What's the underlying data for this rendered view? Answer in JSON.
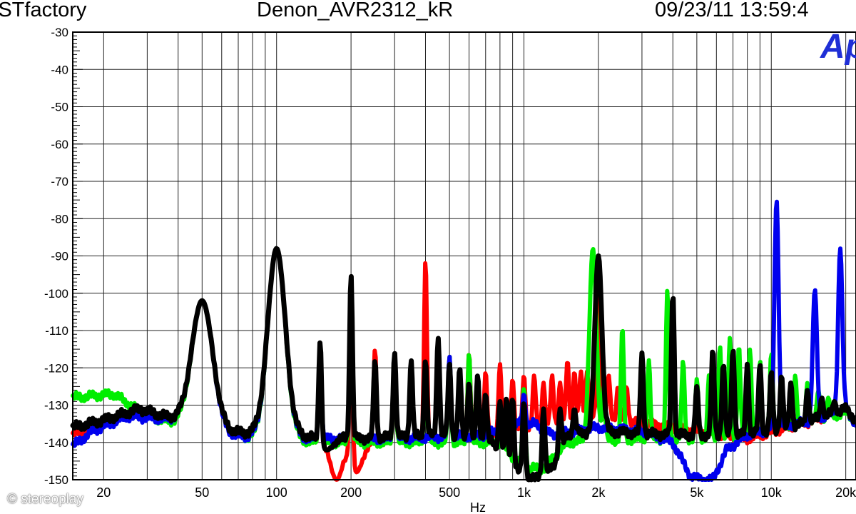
{
  "header": {
    "left": "ESTfactory",
    "title": "Denon_AVR2312_kR",
    "timestamp": "09/23/11 13:59:4"
  },
  "logo_text": "Ap",
  "watermark": "© stereoplay",
  "chart_data": {
    "type": "line",
    "title": "Denon_AVR2312_kR",
    "xlabel": "Hz",
    "ylabel": "",
    "xscale": "log",
    "xlim": [
      15,
      22000
    ],
    "ylim": [
      -150,
      -30
    ],
    "grid": true,
    "yticks": [
      -30,
      -40,
      -50,
      -60,
      -70,
      -80,
      -90,
      -100,
      -110,
      -120,
      -130,
      -140,
      -150
    ],
    "xticks": [
      {
        "value": 20,
        "label": "20"
      },
      {
        "value": 50,
        "label": "50"
      },
      {
        "value": 100,
        "label": "100"
      },
      {
        "value": 200,
        "label": "200"
      },
      {
        "value": 500,
        "label": "500"
      },
      {
        "value": 1000,
        "label": "1k"
      },
      {
        "value": 2000,
        "label": "2k"
      },
      {
        "value": 5000,
        "label": "5k"
      },
      {
        "value": 10000,
        "label": "10k"
      },
      {
        "value": 20000,
        "label": "20k"
      }
    ],
    "series": [
      {
        "color": "#ff0000",
        "baseline": [
          [
            15,
            -138
          ],
          [
            25,
            -132
          ],
          [
            40,
            -134
          ],
          [
            60,
            -137
          ],
          [
            100,
            -139
          ],
          [
            150,
            -140
          ],
          [
            300,
            -140
          ],
          [
            600,
            -139
          ],
          [
            1000,
            -136
          ],
          [
            2000,
            -133
          ],
          [
            4000,
            -136
          ],
          [
            8000,
            -139
          ],
          [
            15000,
            -134
          ],
          [
            20000,
            -131
          ],
          [
            22000,
            -134
          ]
        ],
        "dips": [
          [
            175,
            -150
          ],
          [
            210,
            -148
          ]
        ],
        "peaks": [
          [
            50,
            -102,
            0.06
          ],
          [
            100,
            -88,
            0.05
          ],
          [
            150,
            -113
          ],
          [
            200,
            -95
          ],
          [
            250,
            -115
          ],
          [
            300,
            -117
          ],
          [
            400,
            -91
          ],
          [
            500,
            -117
          ],
          [
            600,
            -116
          ],
          [
            700,
            -121
          ],
          [
            800,
            -119
          ],
          [
            900,
            -123
          ],
          [
            1000,
            -122
          ],
          [
            1100,
            -122
          ],
          [
            1200,
            -124
          ],
          [
            1300,
            -122
          ],
          [
            1400,
            -124
          ],
          [
            1500,
            -118
          ],
          [
            1600,
            -121
          ],
          [
            1700,
            -121
          ],
          [
            1800,
            -121
          ],
          [
            2000,
            -90
          ],
          [
            2200,
            -122
          ],
          [
            2400,
            -125
          ],
          [
            2600,
            -125
          ]
        ]
      },
      {
        "color": "#00ee00",
        "baseline": [
          [
            15,
            -128
          ],
          [
            22,
            -127
          ],
          [
            30,
            -133
          ],
          [
            45,
            -136
          ],
          [
            60,
            -137
          ],
          [
            80,
            -139
          ],
          [
            150,
            -140
          ],
          [
            400,
            -140
          ],
          [
            800,
            -140
          ],
          [
            1000,
            -147
          ],
          [
            1200,
            -147
          ],
          [
            1500,
            -140
          ],
          [
            3000,
            -139
          ],
          [
            6000,
            -139
          ],
          [
            10000,
            -137
          ],
          [
            20000,
            -132
          ],
          [
            22000,
            -134
          ]
        ],
        "dips": [],
        "peaks": [
          [
            50,
            -102,
            0.06
          ],
          [
            100,
            -88,
            0.05
          ],
          [
            150,
            -113
          ],
          [
            200,
            -95
          ],
          [
            300,
            -117
          ],
          [
            400,
            -121
          ],
          [
            500,
            -117
          ],
          [
            600,
            -116
          ],
          [
            1000,
            -125
          ],
          [
            1900,
            -88,
            0.02
          ],
          [
            2100,
            -125
          ],
          [
            2500,
            -109
          ],
          [
            3200,
            -118
          ],
          [
            3800,
            -99
          ],
          [
            4400,
            -118
          ],
          [
            5000,
            -123
          ],
          [
            5600,
            -122
          ],
          [
            6200,
            -114
          ],
          [
            6800,
            -112
          ],
          [
            7400,
            -114
          ],
          [
            8200,
            -115
          ],
          [
            9000,
            -118
          ],
          [
            10000,
            -116
          ],
          [
            11000,
            -125
          ],
          [
            12500,
            -122
          ],
          [
            14000,
            -124
          ],
          [
            15500,
            -126
          ],
          [
            17000,
            -128
          ]
        ]
      },
      {
        "color": "#0000ee",
        "baseline": [
          [
            15,
            -141
          ],
          [
            18,
            -137
          ],
          [
            25,
            -133
          ],
          [
            40,
            -134
          ],
          [
            60,
            -138
          ],
          [
            100,
            -139
          ],
          [
            300,
            -139
          ],
          [
            700,
            -138
          ],
          [
            900,
            -135
          ],
          [
            1100,
            -135
          ],
          [
            1300,
            -138
          ],
          [
            2000,
            -136
          ],
          [
            3000,
            -137
          ],
          [
            4000,
            -140
          ],
          [
            4700,
            -149
          ],
          [
            5200,
            -150
          ],
          [
            5800,
            -150
          ],
          [
            6600,
            -142
          ],
          [
            8000,
            -138
          ],
          [
            15000,
            -134
          ],
          [
            20000,
            -131
          ],
          [
            22000,
            -135
          ]
        ],
        "dips": [],
        "peaks": [
          [
            50,
            -102,
            0.06
          ],
          [
            100,
            -88,
            0.05
          ],
          [
            150,
            -113
          ],
          [
            200,
            -95
          ],
          [
            300,
            -117
          ],
          [
            500,
            -117
          ],
          [
            1000,
            -127
          ],
          [
            10500,
            -75,
            0.012
          ],
          [
            15000,
            -99,
            0.012
          ],
          [
            19000,
            -88,
            0.012
          ]
        ]
      },
      {
        "color": "#000000",
        "baseline": [
          [
            15,
            -136
          ],
          [
            20,
            -134
          ],
          [
            28,
            -131
          ],
          [
            40,
            -134
          ],
          [
            60,
            -137
          ],
          [
            100,
            -138
          ],
          [
            200,
            -139
          ],
          [
            500,
            -138
          ],
          [
            750,
            -140
          ],
          [
            900,
            -147
          ],
          [
            1100,
            -150
          ],
          [
            1300,
            -147
          ],
          [
            1500,
            -138
          ],
          [
            2000,
            -137
          ],
          [
            4000,
            -138
          ],
          [
            8000,
            -138
          ],
          [
            12000,
            -136
          ],
          [
            20000,
            -131
          ],
          [
            22000,
            -134
          ]
        ],
        "dips": [
          [
            160,
            -142
          ]
        ],
        "peaks": [
          [
            50,
            -102,
            0.06
          ],
          [
            100,
            -88,
            0.05
          ],
          [
            150,
            -113
          ],
          [
            200,
            -95
          ],
          [
            250,
            -118
          ],
          [
            300,
            -116
          ],
          [
            350,
            -118
          ],
          [
            400,
            -118
          ],
          [
            450,
            -112
          ],
          [
            500,
            -119
          ],
          [
            550,
            -120
          ],
          [
            600,
            -124
          ],
          [
            650,
            -122
          ],
          [
            700,
            -127
          ],
          [
            800,
            -129
          ],
          [
            850,
            -128
          ],
          [
            900,
            -128
          ],
          [
            1000,
            -129
          ],
          [
            1200,
            -131
          ],
          [
            1400,
            -131
          ],
          [
            1600,
            -131
          ],
          [
            2000,
            -90,
            0.02
          ],
          [
            3000,
            -116
          ],
          [
            4000,
            -100
          ],
          [
            5000,
            -125
          ],
          [
            5800,
            -115
          ],
          [
            6400,
            -119
          ],
          [
            7000,
            -115
          ],
          [
            8000,
            -119
          ],
          [
            9000,
            -119
          ],
          [
            10000,
            -121
          ],
          [
            11000,
            -122
          ],
          [
            12000,
            -124
          ],
          [
            14000,
            -126
          ],
          [
            16000,
            -128
          ],
          [
            18000,
            -129
          ]
        ]
      }
    ]
  }
}
